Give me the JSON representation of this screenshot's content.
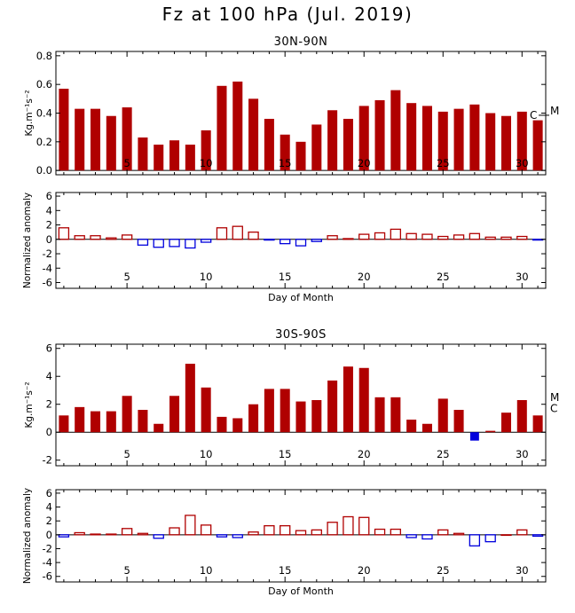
{
  "title": "Fz at 100 hPa (Jul. 2019)",
  "colors": {
    "positive": "#b00000",
    "negative": "#0000dd",
    "axis": "#000000"
  },
  "chart_data": [
    {
      "type": "bar",
      "title": "30N-90N",
      "xlabel": "",
      "ylabel": "Kg.m⁻¹s⁻²",
      "ylim": [
        -0.03,
        0.83
      ],
      "xlim": [
        0.5,
        31.5
      ],
      "yticks": [
        0.0,
        0.2,
        0.4,
        0.6,
        0.8
      ],
      "ytick_labels": [
        "0.0",
        "0.2",
        "0.4",
        "0.6",
        "0.8"
      ],
      "xticks": [
        5,
        10,
        15,
        20,
        25,
        30
      ],
      "xtick_labels": [
        "5",
        "10",
        "15",
        "20",
        "25",
        "30"
      ],
      "bar_style": "filled",
      "highlight_day": 27,
      "x": [
        1,
        2,
        3,
        4,
        5,
        6,
        7,
        8,
        9,
        10,
        11,
        12,
        13,
        14,
        15,
        16,
        17,
        18,
        19,
        20,
        21,
        22,
        23,
        24,
        25,
        26,
        27,
        28,
        29,
        30,
        31
      ],
      "values": [
        0.57,
        0.43,
        0.43,
        0.38,
        0.44,
        0.23,
        0.18,
        0.21,
        0.18,
        0.28,
        0.59,
        0.62,
        0.5,
        0.36,
        0.25,
        0.2,
        0.32,
        0.42,
        0.36,
        0.45,
        0.49,
        0.56,
        0.47,
        0.45,
        0.41,
        0.43,
        0.46,
        0.4,
        0.38,
        0.41,
        0.35
      ],
      "markers": [
        {
          "label": "C",
          "value": 0.385
        },
        {
          "label": "M",
          "value": 0.415
        }
      ]
    },
    {
      "type": "bar",
      "title": "",
      "xlabel": "Day of Month",
      "ylabel": "Normalized anomaly",
      "ylim": [
        -6.8,
        6.5
      ],
      "xlim": [
        0.5,
        31.5
      ],
      "yticks": [
        -6,
        -4,
        -2,
        0,
        2,
        4,
        6
      ],
      "ytick_labels": [
        "-6",
        "-4",
        "-2",
        "0",
        "2",
        "4",
        "6"
      ],
      "xticks": [
        5,
        10,
        15,
        20,
        25,
        30
      ],
      "xtick_labels": [
        "5",
        "10",
        "15",
        "20",
        "25",
        "30"
      ],
      "bar_style": "hollow",
      "x": [
        1,
        2,
        3,
        4,
        5,
        6,
        7,
        8,
        9,
        10,
        11,
        12,
        13,
        14,
        15,
        16,
        17,
        18,
        19,
        20,
        21,
        22,
        23,
        24,
        25,
        26,
        27,
        28,
        29,
        30,
        31
      ],
      "values": [
        1.6,
        0.5,
        0.5,
        0.2,
        0.6,
        -0.8,
        -1.1,
        -1.0,
        -1.2,
        -0.4,
        1.6,
        1.8,
        1.0,
        -0.1,
        -0.6,
        -0.9,
        -0.3,
        0.5,
        0.1,
        0.7,
        0.9,
        1.4,
        0.8,
        0.7,
        0.4,
        0.6,
        0.8,
        0.3,
        0.3,
        0.4,
        -0.1
      ]
    },
    {
      "type": "bar",
      "title": "30S-90S",
      "xlabel": "",
      "ylabel": "Kg.m⁻¹s⁻²",
      "ylim": [
        -2.4,
        6.3
      ],
      "xlim": [
        0.5,
        31.5
      ],
      "yticks": [
        -2,
        0,
        2,
        4,
        6
      ],
      "ytick_labels": [
        "-2",
        "0",
        "2",
        "4",
        "6"
      ],
      "xticks": [
        5,
        10,
        15,
        20,
        25,
        30
      ],
      "xtick_labels": [
        "5",
        "10",
        "15",
        "20",
        "25",
        "30"
      ],
      "bar_style": "filled",
      "highlight_day": 27,
      "x": [
        1,
        2,
        3,
        4,
        5,
        6,
        7,
        8,
        9,
        10,
        11,
        12,
        13,
        14,
        15,
        16,
        17,
        18,
        19,
        20,
        21,
        22,
        23,
        24,
        25,
        26,
        27,
        28,
        29,
        30,
        31
      ],
      "values": [
        1.2,
        1.8,
        1.5,
        1.5,
        2.6,
        1.6,
        0.6,
        2.6,
        4.9,
        3.2,
        1.1,
        1.0,
        2.0,
        3.1,
        3.1,
        2.2,
        2.3,
        3.7,
        4.7,
        4.6,
        2.5,
        2.5,
        0.9,
        0.6,
        2.4,
        1.6,
        -0.6,
        0.1,
        1.4,
        2.3,
        1.2
      ],
      "markers": [
        {
          "label": "M",
          "value": 2.5
        },
        {
          "label": "C",
          "value": 1.7
        }
      ]
    },
    {
      "type": "bar",
      "title": "",
      "xlabel": "Day of Month",
      "ylabel": "Normalized anomaly",
      "ylim": [
        -6.8,
        6.5
      ],
      "xlim": [
        0.5,
        31.5
      ],
      "yticks": [
        -6,
        -4,
        -2,
        0,
        2,
        4,
        6
      ],
      "ytick_labels": [
        "-6",
        "-4",
        "-2",
        "0",
        "2",
        "4",
        "6"
      ],
      "xticks": [
        5,
        10,
        15,
        20,
        25,
        30
      ],
      "xtick_labels": [
        "5",
        "10",
        "15",
        "20",
        "25",
        "30"
      ],
      "bar_style": "hollow",
      "x": [
        1,
        2,
        3,
        4,
        5,
        6,
        7,
        8,
        9,
        10,
        11,
        12,
        13,
        14,
        15,
        16,
        17,
        18,
        19,
        20,
        21,
        22,
        23,
        24,
        25,
        26,
        27,
        28,
        29,
        30,
        31
      ],
      "values": [
        -0.3,
        0.3,
        0.1,
        0.1,
        0.9,
        0.2,
        -0.5,
        1.0,
        2.8,
        1.4,
        -0.3,
        -0.4,
        0.4,
        1.3,
        1.3,
        0.6,
        0.7,
        1.8,
        2.6,
        2.5,
        0.8,
        0.8,
        -0.4,
        -0.6,
        0.7,
        0.2,
        -1.6,
        -1.0,
        0.0,
        0.7,
        -0.2
      ]
    }
  ]
}
